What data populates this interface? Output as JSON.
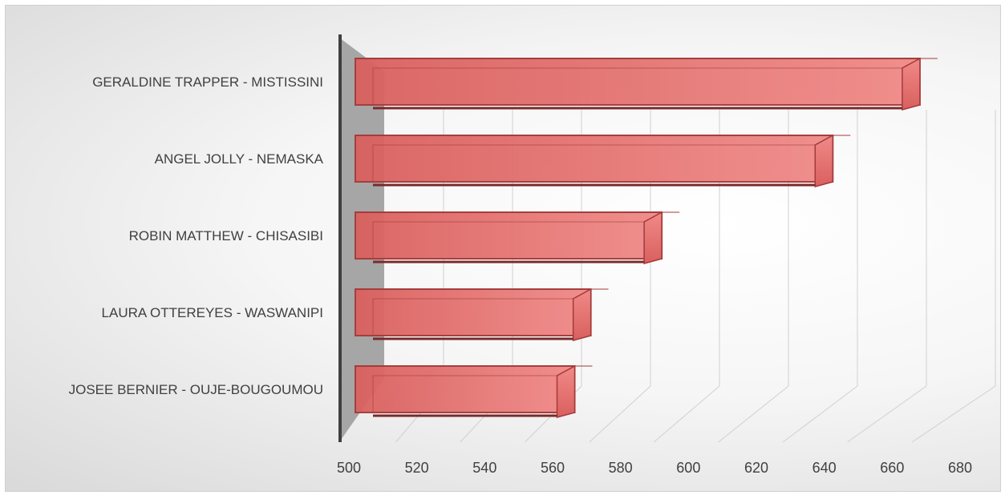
{
  "chart_data": {
    "type": "bar",
    "orientation": "horizontal",
    "style": "3d",
    "categories": [
      "GERALDINE TRAPPER - MISTISSINI",
      "ANGEL JOLLY - NEMASKA",
      "ROBIN MATTHEW - CHISASIBI",
      "LAURA OTTEREYES - WASWANIPI",
      "JOSEE BERNIER - OUJE-BOUGOUMOU"
    ],
    "values": [
      675,
      648,
      595,
      573,
      568
    ],
    "xlim": [
      500,
      680
    ],
    "xticks": [
      500,
      520,
      540,
      560,
      580,
      600,
      620,
      640,
      660,
      680
    ],
    "title": "",
    "xlabel": "",
    "ylabel": "",
    "grid": true,
    "legend": "none",
    "colors": {
      "bar_fill": "#d9605e",
      "bar_highlight": "#f08a88",
      "bar_edge": "#a33a3a",
      "bar_shadow": "#7a2a2a",
      "wall": "#a6a6a6",
      "axis": "#404040",
      "gridline": "#d0d0d0"
    }
  }
}
